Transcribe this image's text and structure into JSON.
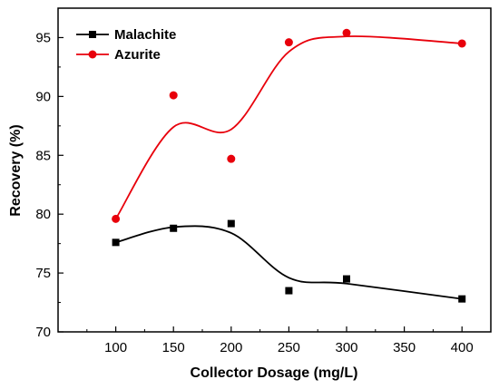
{
  "chart_data": {
    "type": "scatter",
    "title": "",
    "xlabel": "Collector Dosage (mg/L)",
    "ylabel": "Recovery (%)",
    "xlim": [
      50,
      425
    ],
    "ylim": [
      70,
      97.5
    ],
    "xticks": [
      100,
      150,
      200,
      250,
      300,
      350,
      400
    ],
    "yticks": [
      70,
      75,
      80,
      85,
      90,
      95
    ],
    "grid": false,
    "legend_position": "top-left",
    "series": [
      {
        "name": "Malachite",
        "color": "#000000",
        "marker": "square",
        "x": [
          100,
          150,
          200,
          250,
          300,
          400
        ],
        "y": [
          77.6,
          78.8,
          79.2,
          73.5,
          74.5,
          72.8
        ],
        "curve": "smooth-fit"
      },
      {
        "name": "Azurite",
        "color": "#e8000b",
        "marker": "circle",
        "x": [
          100,
          150,
          200,
          250,
          300,
          400
        ],
        "y": [
          79.6,
          90.1,
          84.7,
          94.6,
          95.4,
          94.5
        ],
        "curve": "smooth-fit"
      }
    ]
  }
}
